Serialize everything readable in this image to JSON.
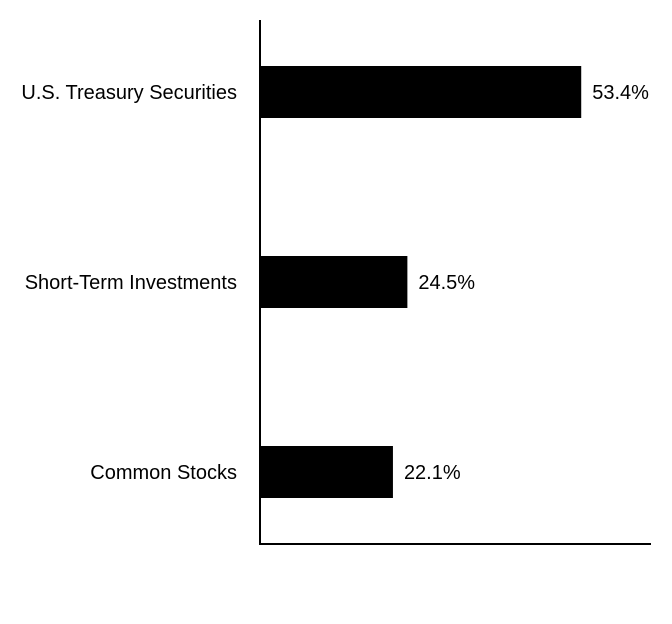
{
  "chart_data": {
    "type": "bar",
    "orientation": "horizontal",
    "categories": [
      "U.S. Treasury Securities",
      "Short-Term Investments",
      "Common Stocks"
    ],
    "values": [
      53.4,
      24.5,
      22.1
    ],
    "value_labels": [
      "53.4%",
      "24.5%",
      "22.1%"
    ],
    "unit": "%",
    "title": "",
    "xlabel": "",
    "ylabel": "",
    "xlim": [
      0,
      65
    ],
    "grid": false,
    "legend": "none",
    "bar_color": "#000000"
  }
}
